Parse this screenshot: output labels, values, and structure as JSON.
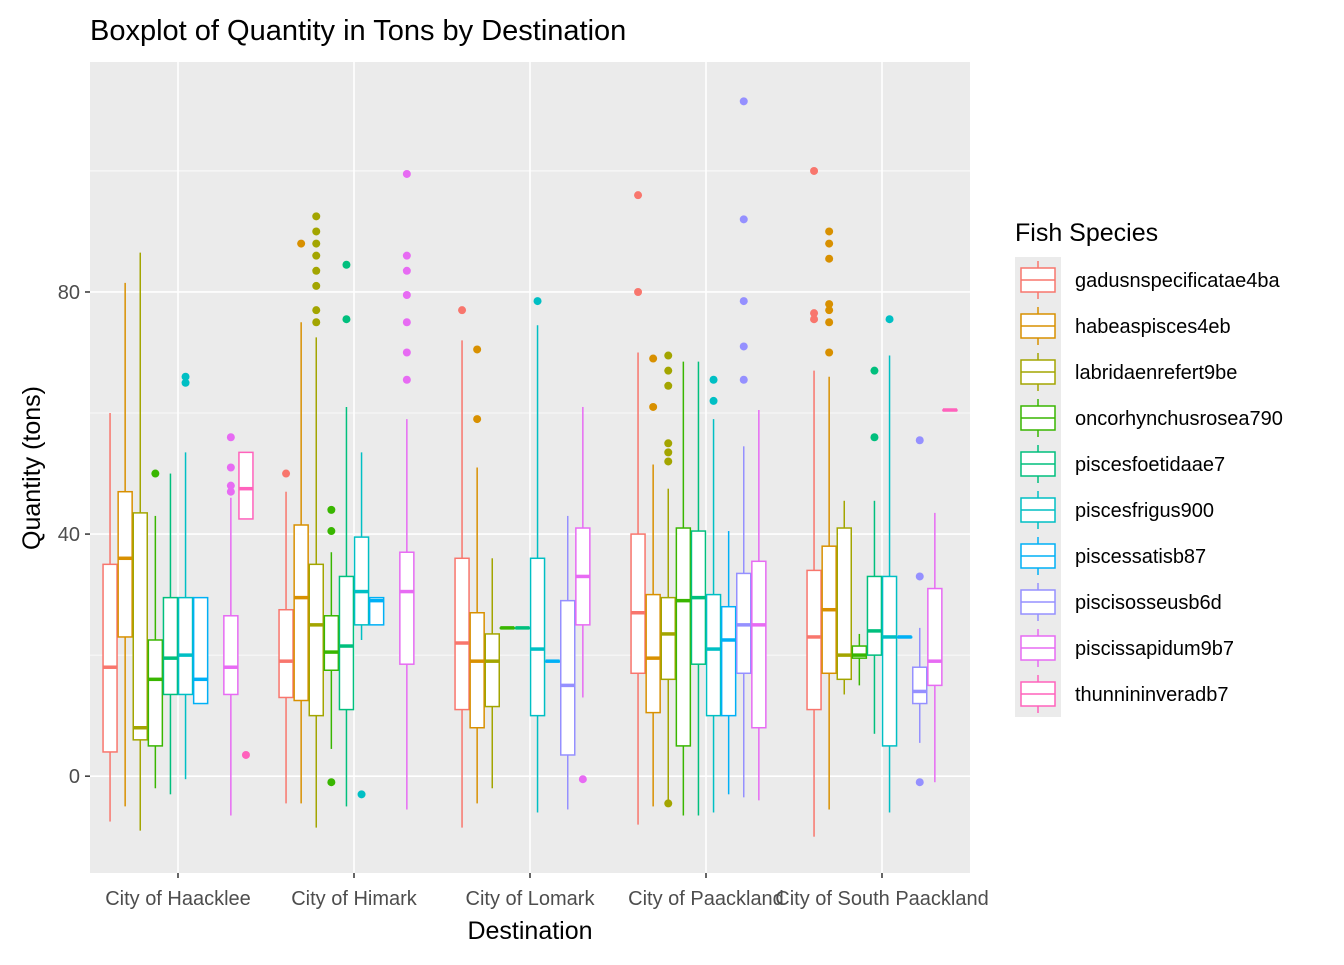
{
  "chart_data": {
    "type": "boxplot",
    "title": "Boxplot of Quantity in Tons by Destination",
    "xlabel": "Destination",
    "ylabel": "Quantity (tons)",
    "ylim": [
      -16,
      118
    ],
    "yticks": [
      0,
      40,
      80
    ],
    "grid": true,
    "legend": {
      "title": "Fish Species",
      "position": "right"
    },
    "categories": [
      "City of Haacklee",
      "City of Himark",
      "City of Lomark",
      "City of Paackland",
      "City of South Paackland"
    ],
    "series": [
      {
        "name": "gadusnspecificatae4ba",
        "color": "#F8766D",
        "boxes": [
          {
            "category": "City of Haacklee",
            "whisker_low": -7.5,
            "q1": 4,
            "median": 18,
            "q3": 35,
            "whisker_high": 60,
            "outliers": []
          },
          {
            "category": "City of Himark",
            "whisker_low": -4.5,
            "q1": 13,
            "median": 19,
            "q3": 27.5,
            "whisker_high": 47,
            "outliers": [
              50
            ]
          },
          {
            "category": "City of Lomark",
            "whisker_low": -8.5,
            "q1": 11,
            "median": 22,
            "q3": 36,
            "whisker_high": 72,
            "outliers": [
              77
            ]
          },
          {
            "category": "City of Paackland",
            "whisker_low": -8,
            "q1": 17,
            "median": 27,
            "q3": 40,
            "whisker_high": 70,
            "outliers": [
              80,
              96
            ]
          },
          {
            "category": "City of South Paackland",
            "whisker_low": -10,
            "q1": 11,
            "median": 23,
            "q3": 34,
            "whisker_high": 67,
            "outliers": [
              75.5,
              76.5,
              100
            ]
          }
        ]
      },
      {
        "name": "habeaspisces4eb",
        "color": "#D89000",
        "boxes": [
          {
            "category": "City of Haacklee",
            "whisker_low": -5,
            "q1": 23,
            "median": 36,
            "q3": 47,
            "whisker_high": 81.5,
            "outliers": []
          },
          {
            "category": "City of Himark",
            "whisker_low": -4.5,
            "q1": 12.5,
            "median": 29.5,
            "q3": 41.5,
            "whisker_high": 75,
            "outliers": [
              88
            ]
          },
          {
            "category": "City of Lomark",
            "whisker_low": -4.5,
            "q1": 8,
            "median": 19,
            "q3": 27,
            "whisker_high": 51,
            "outliers": [
              59,
              70.5
            ]
          },
          {
            "category": "City of Paackland",
            "whisker_low": -5,
            "q1": 10.5,
            "median": 19.5,
            "q3": 30,
            "whisker_high": 51.5,
            "outliers": [
              61,
              69
            ]
          },
          {
            "category": "City of South Paackland",
            "whisker_low": -5.5,
            "q1": 17,
            "median": 27.5,
            "q3": 38,
            "whisker_high": 66,
            "outliers": [
              70,
              75,
              77,
              78,
              85.5,
              88,
              90
            ]
          }
        ]
      },
      {
        "name": "labridaenrefert9be",
        "color": "#A3A500",
        "boxes": [
          {
            "category": "City of Haacklee",
            "whisker_low": -9,
            "q1": 6,
            "median": 8,
            "q3": 43.5,
            "whisker_high": 86.5,
            "outliers": []
          },
          {
            "category": "City of Himark",
            "whisker_low": -8.5,
            "q1": 10,
            "median": 25,
            "q3": 35,
            "whisker_high": 72.5,
            "outliers": [
              75,
              77,
              81,
              83.5,
              86,
              88,
              90,
              92.5
            ]
          },
          {
            "category": "City of Lomark",
            "whisker_low": -2,
            "q1": 11.5,
            "median": 19,
            "q3": 23.5,
            "whisker_high": 36,
            "outliers": []
          },
          {
            "category": "City of Paackland",
            "whisker_low": -4.5,
            "q1": 16,
            "median": 23.5,
            "q3": 29.5,
            "whisker_high": 47.5,
            "outliers": [
              -4.5,
              52,
              53.5,
              55,
              64.5,
              67,
              69.5
            ]
          },
          {
            "category": "City of South Paackland",
            "whisker_low": 13.5,
            "q1": 16,
            "median": 20,
            "q3": 41,
            "whisker_high": 45.5,
            "outliers": []
          }
        ]
      },
      {
        "name": "oncorhynchusrosea790",
        "color": "#39B600",
        "boxes": [
          {
            "category": "City of Haacklee",
            "whisker_low": -2,
            "q1": 5,
            "median": 16,
            "q3": 22.5,
            "whisker_high": 43,
            "outliers": [
              50
            ]
          },
          {
            "category": "City of Himark",
            "whisker_low": 4.5,
            "q1": 17.5,
            "median": 20.5,
            "q3": 26.5,
            "whisker_high": 37,
            "outliers": [
              -1,
              40.5,
              44
            ]
          },
          {
            "category": "City of Lomark",
            "whisker_low": 24.5,
            "q1": 24.5,
            "median": 24.5,
            "q3": 24.5,
            "whisker_high": 24.5,
            "outliers": []
          },
          {
            "category": "City of Paackland",
            "whisker_low": -6.5,
            "q1": 5,
            "median": 29,
            "q3": 41,
            "whisker_high": 68.5,
            "outliers": []
          },
          {
            "category": "City of South Paackland",
            "whisker_low": 15,
            "q1": 19.5,
            "median": 20,
            "q3": 21.5,
            "whisker_high": 23.5,
            "outliers": []
          }
        ]
      },
      {
        "name": "piscesfoetidaae7",
        "color": "#00BF7D",
        "boxes": [
          {
            "category": "City of Haacklee",
            "whisker_low": -3,
            "q1": 13.5,
            "median": 19.5,
            "q3": 29.5,
            "whisker_high": 50,
            "outliers": []
          },
          {
            "category": "City of Himark",
            "whisker_low": -5,
            "q1": 11,
            "median": 21.5,
            "q3": 33,
            "whisker_high": 61,
            "outliers": [
              75.5,
              84.5
            ]
          },
          {
            "category": "City of Lomark",
            "whisker_low": 24.5,
            "q1": 24.5,
            "median": 24.5,
            "q3": 24.5,
            "whisker_high": 24.5,
            "outliers": []
          },
          {
            "category": "City of Paackland",
            "whisker_low": -6.5,
            "q1": 18.5,
            "median": 29.5,
            "q3": 40.5,
            "whisker_high": 68.5,
            "outliers": []
          },
          {
            "category": "City of South Paackland",
            "whisker_low": 7,
            "q1": 20,
            "median": 24,
            "q3": 33,
            "whisker_high": 45.5,
            "outliers": [
              56,
              67
            ]
          }
        ]
      },
      {
        "name": "piscesfrigus900",
        "color": "#00BFC4",
        "boxes": [
          {
            "category": "City of Haacklee",
            "whisker_low": -0.5,
            "q1": 13.5,
            "median": 20,
            "q3": 29.5,
            "whisker_high": 53.5,
            "outliers": [
              65,
              66
            ]
          },
          {
            "category": "City of Himark",
            "whisker_low": 22.5,
            "q1": 25,
            "median": 30.5,
            "q3": 39.5,
            "whisker_high": 53.5,
            "outliers": [
              -3
            ]
          },
          {
            "category": "City of Lomark",
            "whisker_low": -6,
            "q1": 10,
            "median": 21,
            "q3": 36,
            "whisker_high": 74.5,
            "outliers": [
              78.5
            ]
          },
          {
            "category": "City of Paackland",
            "whisker_low": -6,
            "q1": 10,
            "median": 21,
            "q3": 30,
            "whisker_high": 59,
            "outliers": [
              62,
              65.5
            ]
          },
          {
            "category": "City of South Paackland",
            "whisker_low": -6,
            "q1": 5,
            "median": 23,
            "q3": 33,
            "whisker_high": 69.5,
            "outliers": [
              75.5
            ]
          }
        ]
      },
      {
        "name": "piscessatisb87",
        "color": "#00B0F6",
        "boxes": [
          {
            "category": "City of Haacklee",
            "whisker_low": 12,
            "q1": 12,
            "median": 16,
            "q3": 29.5,
            "whisker_high": 29.5,
            "outliers": []
          },
          {
            "category": "City of Himark",
            "whisker_low": 25,
            "q1": 25,
            "median": 29,
            "q3": 29.5,
            "whisker_high": 29.5,
            "outliers": []
          },
          {
            "category": "City of Lomark",
            "whisker_low": 19,
            "q1": 19,
            "median": 19,
            "q3": 19,
            "whisker_high": 19,
            "outliers": []
          },
          {
            "category": "City of Paackland",
            "whisker_low": -3,
            "q1": 10,
            "median": 22.5,
            "q3": 28,
            "whisker_high": 40.5,
            "outliers": []
          },
          {
            "category": "City of South Paackland",
            "whisker_low": 23,
            "q1": 23,
            "median": 23,
            "q3": 23,
            "whisker_high": 23,
            "outliers": []
          }
        ]
      },
      {
        "name": "piscisosseusb6d",
        "color": "#9590FF",
        "boxes": [
          {
            "category": "City of Lomark",
            "whisker_low": -5.5,
            "q1": 3.5,
            "median": 15,
            "q3": 29,
            "whisker_high": 43,
            "outliers": []
          },
          {
            "category": "City of Paackland",
            "whisker_low": -3.5,
            "q1": 17,
            "median": 25,
            "q3": 33.5,
            "whisker_high": 54.5,
            "outliers": [
              65.5,
              71,
              78.5,
              92,
              111.5
            ]
          },
          {
            "category": "City of South Paackland",
            "whisker_low": 5.5,
            "q1": 12,
            "median": 14,
            "q3": 18,
            "whisker_high": 24.5,
            "outliers": [
              -1,
              33,
              55.5
            ]
          }
        ]
      },
      {
        "name": "piscissapidum9b7",
        "color": "#E76BF3",
        "boxes": [
          {
            "category": "City of Haacklee",
            "whisker_low": -6.5,
            "q1": 13.5,
            "median": 18,
            "q3": 26.5,
            "whisker_high": 46,
            "outliers": [
              47,
              48,
              51,
              56
            ]
          },
          {
            "category": "City of Himark",
            "whisker_low": -5.5,
            "q1": 18.5,
            "median": 30.5,
            "q3": 37,
            "whisker_high": 59,
            "outliers": [
              65.5,
              70,
              75,
              79.5,
              83.5,
              86,
              99.5
            ]
          },
          {
            "category": "City of Lomark",
            "whisker_low": 13,
            "q1": 25,
            "median": 33,
            "q3": 41,
            "whisker_high": 61,
            "outliers": [
              -0.5
            ]
          },
          {
            "category": "City of Paackland",
            "whisker_low": -4,
            "q1": 8,
            "median": 25,
            "q3": 35.5,
            "whisker_high": 60.5,
            "outliers": []
          },
          {
            "category": "City of South Paackland",
            "whisker_low": -1,
            "q1": 15,
            "median": 19,
            "q3": 31,
            "whisker_high": 43.5,
            "outliers": []
          }
        ]
      },
      {
        "name": "thunnininveradb7",
        "color": "#FF62BC",
        "boxes": [
          {
            "category": "City of Haacklee",
            "whisker_low": 42.5,
            "q1": 42.5,
            "median": 47.5,
            "q3": 53.5,
            "whisker_high": 53.5,
            "outliers": [
              3.5
            ]
          },
          {
            "category": "City of South Paackland",
            "whisker_low": 60.5,
            "q1": 60.5,
            "median": 60.5,
            "q3": 60.5,
            "whisker_high": 60.5,
            "outliers": []
          }
        ]
      }
    ]
  }
}
